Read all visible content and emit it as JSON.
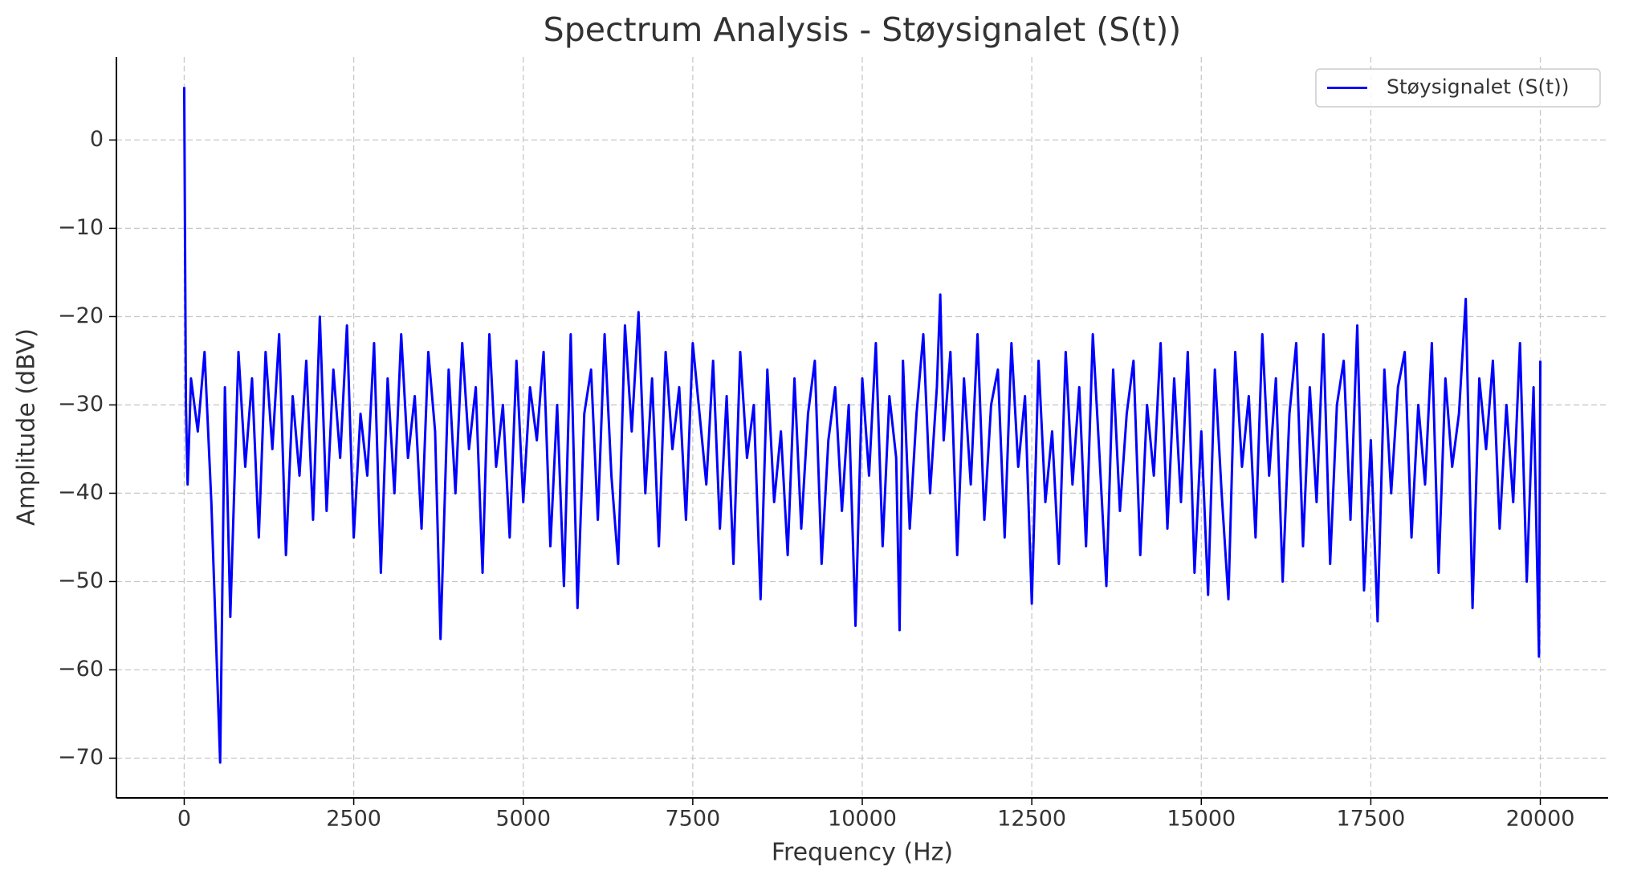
{
  "chart_data": {
    "type": "line",
    "title": "Spectrum Analysis - Støysignalet (S(t))",
    "x_label": "Frequency (Hz)",
    "y_label": "Amplitude (dBV)",
    "x": [
      0,
      25,
      50,
      100,
      200,
      300,
      400,
      530,
      600,
      680,
      800,
      900,
      1000,
      1100,
      1200,
      1300,
      1400,
      1500,
      1600,
      1700,
      1800,
      1900,
      2000,
      2100,
      2200,
      2300,
      2400,
      2500,
      2600,
      2700,
      2800,
      2900,
      3000,
      3100,
      3200,
      3300,
      3400,
      3500,
      3600,
      3700,
      3780,
      3900,
      4000,
      4100,
      4200,
      4300,
      4400,
      4500,
      4600,
      4700,
      4800,
      4900,
      5000,
      5100,
      5200,
      5300,
      5400,
      5500,
      5600,
      5700,
      5800,
      5900,
      6000,
      6100,
      6200,
      6300,
      6400,
      6500,
      6600,
      6700,
      6800,
      6900,
      7000,
      7100,
      7200,
      7300,
      7400,
      7500,
      7600,
      7700,
      7800,
      7900,
      8000,
      8100,
      8200,
      8300,
      8400,
      8500,
      8600,
      8700,
      8800,
      8900,
      9000,
      9100,
      9200,
      9300,
      9400,
      9500,
      9600,
      9700,
      9800,
      9900,
      10000,
      10100,
      10200,
      10300,
      10400,
      10500,
      10550,
      10600,
      10700,
      10800,
      10900,
      11000,
      11100,
      11150,
      11200,
      11300,
      11400,
      11500,
      11600,
      11700,
      11800,
      11900,
      12000,
      12100,
      12200,
      12300,
      12400,
      12500,
      12600,
      12700,
      12800,
      12900,
      13000,
      13100,
      13200,
      13300,
      13400,
      13500,
      13600,
      13700,
      13800,
      13900,
      14000,
      14100,
      14200,
      14300,
      14400,
      14500,
      14600,
      14700,
      14800,
      14900,
      15000,
      15100,
      15200,
      15300,
      15400,
      15500,
      15600,
      15700,
      15800,
      15900,
      16000,
      16100,
      16200,
      16300,
      16400,
      16500,
      16600,
      16700,
      16800,
      16900,
      17000,
      17100,
      17200,
      17300,
      17400,
      17500,
      17600,
      17700,
      17800,
      17900,
      18000,
      18100,
      18200,
      18300,
      18400,
      18500,
      18600,
      18700,
      18800,
      18900,
      19000,
      19100,
      19200,
      19300,
      19400,
      19500,
      19600,
      19700,
      19800,
      19900,
      19980,
      20000
    ],
    "series": [
      {
        "name": "Støysignalet (S(t))",
        "color": "#0000ff",
        "values": [
          6,
          -30,
          -39,
          -27,
          -33,
          -24,
          -41,
          -70.5,
          -28,
          -54,
          -24,
          -37,
          -27,
          -45,
          -24,
          -35,
          -22,
          -47,
          -29,
          -38,
          -25,
          -43,
          -20,
          -42,
          -26,
          -36,
          -21,
          -45,
          -31,
          -38,
          -23,
          -49,
          -27,
          -40,
          -22,
          -36,
          -29,
          -44,
          -24,
          -33,
          -56.5,
          -26,
          -40,
          -23,
          -35,
          -28,
          -49,
          -22,
          -37,
          -30,
          -45,
          -25,
          -41,
          -28,
          -34,
          -24,
          -46,
          -30,
          -50.5,
          -22,
          -53,
          -31,
          -26,
          -43,
          -22,
          -38,
          -48,
          -21,
          -33,
          -19.5,
          -40,
          -27,
          -46,
          -24,
          -35,
          -28,
          -43,
          -23,
          -31,
          -39,
          -25,
          -44,
          -29,
          -48,
          -24,
          -36,
          -30,
          -52,
          -26,
          -41,
          -33,
          -47,
          -27,
          -44,
          -31,
          -25,
          -48,
          -34,
          -28,
          -42,
          -30,
          -55,
          -27,
          -38,
          -23,
          -46,
          -29,
          -36,
          -55.5,
          -25,
          -44,
          -31,
          -22,
          -40,
          -28,
          -17.5,
          -34,
          -24,
          -47,
          -27,
          -39,
          -22,
          -43,
          -30,
          -26,
          -45,
          -23,
          -37,
          -29,
          -52.5,
          -25,
          -41,
          -33,
          -48,
          -24,
          -39,
          -28,
          -46,
          -22,
          -36,
          -50.5,
          -26,
          -42,
          -31,
          -25,
          -47,
          -30,
          -38,
          -23,
          -44,
          -27,
          -41,
          -24,
          -49,
          -33,
          -51.5,
          -26,
          -40,
          -52,
          -24,
          -37,
          -29,
          -45,
          -22,
          -38,
          -27,
          -50,
          -31,
          -23,
          -46,
          -28,
          -41,
          -22,
          -48,
          -30,
          -25,
          -43,
          -21,
          -51,
          -34,
          -54.5,
          -26,
          -40,
          -28,
          -24,
          -45,
          -30,
          -39,
          -23,
          -49,
          -27,
          -37,
          -31,
          -18,
          -53,
          -27,
          -35,
          -25,
          -44,
          -30,
          -41,
          -23,
          -50,
          -28,
          -58.5,
          -25
        ]
      }
    ],
    "xlim": [
      -1000,
      21000
    ],
    "ylim": [
      -74.5,
      9.4
    ],
    "xticks": [
      0,
      2500,
      5000,
      7500,
      10000,
      12500,
      15000,
      17500,
      20000
    ],
    "yticks": [
      0,
      {
        "value": -10,
        "label": "−10"
      },
      {
        "value": -20,
        "label": "−20"
      },
      {
        "value": -30,
        "label": "−30"
      },
      {
        "value": -40,
        "label": "−40"
      },
      {
        "value": -50,
        "label": "−50"
      },
      {
        "value": -60,
        "label": "−60"
      },
      {
        "value": -70,
        "label": "−70"
      }
    ],
    "grid": true,
    "legend": "upper right"
  }
}
